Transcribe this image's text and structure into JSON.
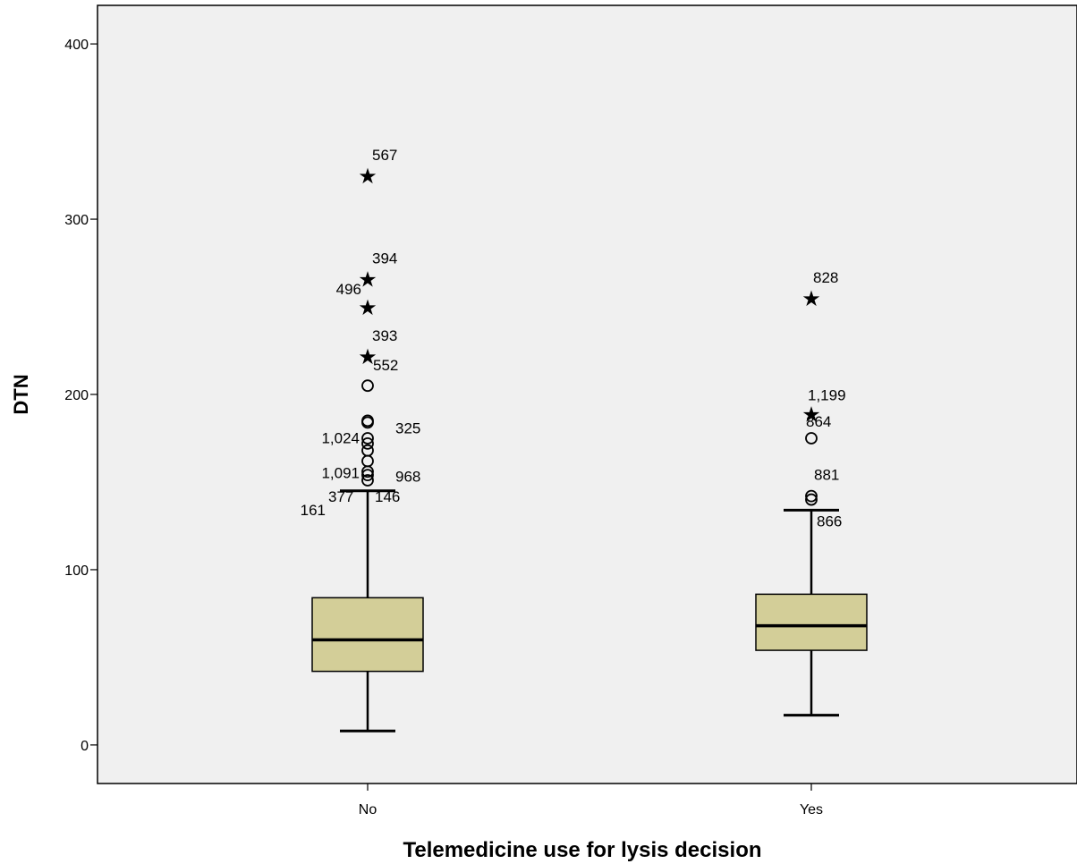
{
  "chart_data": {
    "type": "boxplot",
    "title": "",
    "xlabel": "Telemedicine use for lysis decision",
    "ylabel": "DTN",
    "ylim": [
      -22,
      422
    ],
    "yticks": [
      0,
      100,
      200,
      300,
      400
    ],
    "grid": false,
    "categories": [
      "No",
      "Yes"
    ],
    "boxes": [
      {
        "category": "No",
        "whisker_low": 8,
        "q1": 42,
        "median": 60,
        "q3": 84,
        "whisker_high": 145,
        "outliers": [
          {
            "value": 325,
            "marker": "star",
            "label": "567"
          },
          {
            "value": 266,
            "marker": "star",
            "label": "394"
          },
          {
            "value": 250,
            "marker": "star",
            "label": "496"
          },
          {
            "value": 222,
            "marker": "star",
            "label": "393"
          },
          {
            "value": 205,
            "marker": "circle",
            "label": "552"
          },
          {
            "value": 185,
            "marker": "circle",
            "label": "1,024"
          },
          {
            "value": 184,
            "marker": "circle",
            "label": "325"
          },
          {
            "value": 175,
            "marker": "circle",
            "label": ""
          },
          {
            "value": 172,
            "marker": "circle",
            "label": ""
          },
          {
            "value": 168,
            "marker": "circle",
            "label": "1,091"
          },
          {
            "value": 162,
            "marker": "circle",
            "label": "968"
          },
          {
            "value": 156,
            "marker": "circle",
            "label": ""
          },
          {
            "value": 154,
            "marker": "circle",
            "label": ""
          },
          {
            "value": 151,
            "marker": "circle",
            "label": "161"
          },
          {
            "value": 145,
            "marker": "none",
            "label": "377"
          },
          {
            "value": 145,
            "marker": "none",
            "label": "146"
          }
        ]
      },
      {
        "category": "Yes",
        "whisker_low": 17,
        "q1": 54,
        "median": 68,
        "q3": 86,
        "whisker_high": 134,
        "outliers": [
          {
            "value": 255,
            "marker": "star",
            "label": "828"
          },
          {
            "value": 189,
            "marker": "star",
            "label": "1,199"
          },
          {
            "value": 175,
            "marker": "circle",
            "label": "864"
          },
          {
            "value": 142,
            "marker": "circle",
            "label": "881"
          },
          {
            "value": 140,
            "marker": "circle",
            "label": "866"
          }
        ]
      }
    ],
    "colors": {
      "plot_background": "#f0f0f0",
      "box_fill": "#d3ce98",
      "line": "#000000",
      "page_background": "#ffffff"
    }
  }
}
